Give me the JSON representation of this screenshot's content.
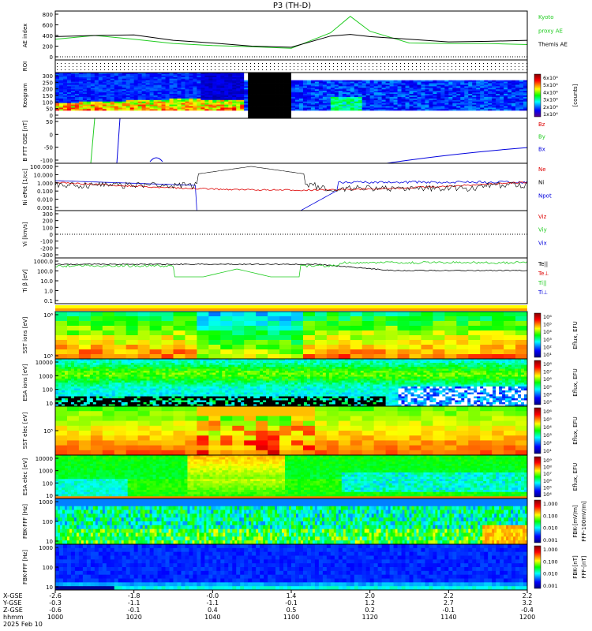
{
  "title": "P3 (TH-D)",
  "colors": {
    "green": "#22cc22",
    "red": "#dd0000",
    "blue": "#0000dd",
    "black": "#000000"
  },
  "time_axis": {
    "ticks": [
      "1000",
      "1020",
      "1040",
      "1100",
      "1120",
      "1140",
      "1200"
    ],
    "rows": [
      {
        "label": "X-GSE",
        "values": [
          "-2.6",
          "-1.8",
          "-0.0",
          "1.4",
          "2.0",
          "2.2",
          "2.2"
        ]
      },
      {
        "label": "Y-GSE",
        "values": [
          "-0.3",
          "-1.1",
          "-1.1",
          "-0.1",
          "1.2",
          "2.7",
          "3.2"
        ]
      },
      {
        "label": "Z-GSE",
        "values": [
          "-0.6",
          "-0.1",
          "0.4",
          "0.5",
          "0.2",
          "-0.1",
          "-0.4"
        ]
      },
      {
        "label": "hhmm",
        "values": [
          "1000",
          "1020",
          "1040",
          "1100",
          "1120",
          "1140",
          "1200"
        ]
      }
    ],
    "date": "2025 Feb 10"
  },
  "chart_data": [
    {
      "type": "line",
      "panel": "ae",
      "ylabel": "AE index",
      "yticks": [
        "800",
        "600",
        "400",
        "200",
        "0"
      ],
      "ylim": [
        0,
        800
      ],
      "x_minutes": [
        0,
        10,
        20,
        30,
        40,
        50,
        60,
        70,
        75,
        80,
        90,
        100,
        110,
        120
      ],
      "series": [
        {
          "name": "Kyoto proxy AE",
          "color": "green",
          "values": [
            330,
            400,
            330,
            250,
            210,
            190,
            160,
            450,
            760,
            480,
            260,
            250,
            250,
            230
          ]
        },
        {
          "name": "Themis AE",
          "color": "black",
          "values": [
            380,
            400,
            410,
            310,
            260,
            200,
            180,
            390,
            420,
            380,
            330,
            280,
            290,
            310
          ]
        }
      ],
      "legend": [
        [
          "Kyoto",
          "green"
        ],
        [
          "proxy AE",
          "green"
        ],
        [
          "Themis AE",
          "black"
        ]
      ]
    },
    {
      "type": "line",
      "panel": "roi",
      "ylabel": "ROI"
    },
    {
      "type": "heatmap",
      "panel": "keogram",
      "ylabel": "Keogram",
      "yticks": [
        "300",
        "250",
        "200",
        "150",
        "100",
        "50",
        "0"
      ],
      "colorbar_ticks": [
        "6x10⁴",
        "5x10⁴",
        "4x10⁴",
        "3x10⁴",
        "2x10⁴",
        "1x10⁴"
      ],
      "colorbar_label": "[counts]"
    },
    {
      "type": "line",
      "panel": "bfield",
      "ylabel": "B FTT GSE [nT]",
      "yticks": [
        "50",
        "0",
        "-50",
        "-100"
      ],
      "ylim": [
        -100,
        100
      ],
      "legend": [
        [
          "Bz",
          "red"
        ],
        [
          "By",
          "green"
        ],
        [
          "Bx",
          "blue"
        ]
      ]
    },
    {
      "type": "line",
      "panel": "density",
      "ylabel": "Ni ePot [1/cc]",
      "yticks": [
        "100.000",
        "10.000",
        "1.000",
        "0.100",
        "0.010",
        "0.001"
      ],
      "legend": [
        [
          "Ne",
          "red"
        ],
        [
          "Ni",
          "black"
        ],
        [
          "Npot",
          "blue"
        ]
      ]
    },
    {
      "type": "line",
      "panel": "velocity",
      "ylabel": "Vi [km/s]",
      "yticks": [
        "300",
        "200",
        "100",
        "0",
        "-100",
        "-200",
        "-300"
      ],
      "ylim": [
        -300,
        300
      ],
      "legend": [
        [
          "Viz",
          "red"
        ],
        [
          "Viy",
          "green"
        ],
        [
          "Vix",
          "blue"
        ]
      ]
    },
    {
      "type": "line",
      "panel": "temperature",
      "ylabel": "Ti β [eV]",
      "yticks": [
        "1000.0",
        "100.0",
        "10.0",
        "1.0",
        "0.1"
      ],
      "legend": [
        [
          "Te||",
          "black"
        ],
        [
          "Te⊥",
          "red"
        ],
        [
          "Ti||",
          "green"
        ],
        [
          "Ti⊥",
          "blue"
        ]
      ]
    },
    {
      "type": "heatmap",
      "panel": "sst_ion",
      "ylabel": "SST ions [eV]",
      "yticks": [
        "10⁶",
        "10⁵"
      ],
      "colorbar_ticks": [
        "10⁶",
        "10⁵",
        "10⁴",
        "10³",
        "10²",
        "10¹"
      ],
      "colorbar_label": "Eflux, EFU"
    },
    {
      "type": "heatmap",
      "panel": "esa_ion",
      "ylabel": "ESA ions [eV]",
      "yticks": [
        "10000",
        "1000",
        "100",
        "10"
      ],
      "colorbar_ticks": [
        "10⁸",
        "10⁷",
        "10⁶",
        "10⁵",
        "10⁴",
        "10³"
      ],
      "colorbar_label": "Eflux, EFU"
    },
    {
      "type": "heatmap",
      "panel": "sst_elec",
      "ylabel": "SST elec [eV]",
      "yticks": [
        "10⁵"
      ],
      "colorbar_ticks": [
        "10⁶",
        "10⁵",
        "10⁴",
        "10³",
        "10²",
        "10¹"
      ],
      "colorbar_label": "Eflux, EFU"
    },
    {
      "type": "heatmap",
      "panel": "esa_elec",
      "ylabel": "ESA elec [eV]",
      "yticks": [
        "10000",
        "1000",
        "100",
        "10"
      ],
      "colorbar_ticks": [
        "10⁹",
        "10⁸",
        "10⁷",
        "10⁶",
        "10⁵",
        "10⁴"
      ],
      "colorbar_label": "Eflux, EFU"
    },
    {
      "type": "heatmap",
      "panel": "fbk_e",
      "ylabel": "FBK-FFF [Hz]",
      "yticks": [
        "1000",
        "100",
        "10"
      ],
      "colorbar_ticks": [
        "1.000",
        "0.100",
        "0.010",
        "0.001"
      ],
      "colorbar_label": "FBK-[mV/m]",
      "colorbar_label2": "FFF-100mV/m]"
    },
    {
      "type": "heatmap",
      "panel": "fbk_b",
      "ylabel": "FBK-FFF [Hz]",
      "yticks": [
        "1000",
        "100",
        "10"
      ],
      "colorbar_ticks": [
        "1.000",
        "0.100",
        "0.010",
        "0.001"
      ],
      "colorbar_label": "FBK-[nT]",
      "colorbar_label2": "FFF-[nT]"
    }
  ]
}
